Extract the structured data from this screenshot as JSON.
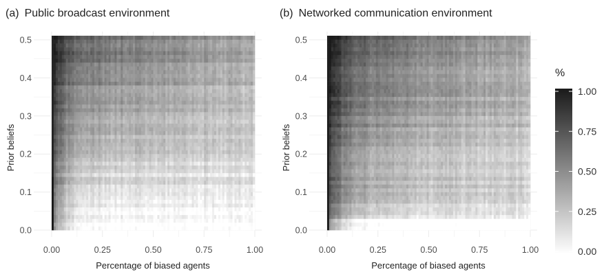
{
  "chart_data": [
    {
      "type": "heatmap",
      "panel_label": "(a)",
      "title": "Public broadcast environment",
      "xlabel": "Percentage of biased agents",
      "ylabel": "Prior beliefs",
      "xlim": [
        0,
        1
      ],
      "ylim": [
        0,
        0.5
      ],
      "x_ticks": [
        "0.00",
        "0.25",
        "0.50",
        "0.75",
        "1.00"
      ],
      "y_ticks": [
        "0.0",
        "0.1",
        "0.2",
        "0.3",
        "0.4",
        "0.5"
      ],
      "grid": true,
      "cell_grid": {
        "x_start": 0.0,
        "x_step": 0.01,
        "y_start": 0.0,
        "y_step": 0.01
      },
      "value_model": {
        "low_x_dark_column": {
          "x_max": 0.01,
          "value": 1.0
        },
        "description": "value rises with prior belief; near-black at very low bias share, lightest at low beliefs and high bias share"
      },
      "y_profile": [
        0.02,
        0.04,
        0.05,
        0.07,
        0.08,
        0.09,
        0.1,
        0.11,
        0.12,
        0.13,
        0.14,
        0.16,
        0.18,
        0.2,
        0.21,
        0.22,
        0.24,
        0.26,
        0.27,
        0.28,
        0.3,
        0.31,
        0.32,
        0.34,
        0.35,
        0.36,
        0.38,
        0.39,
        0.4,
        0.42,
        0.43,
        0.44,
        0.46,
        0.47,
        0.48,
        0.5,
        0.52,
        0.53,
        0.54,
        0.56,
        0.57,
        0.58,
        0.6,
        0.61,
        0.62,
        0.64,
        0.65,
        0.66,
        0.68,
        0.69,
        0.7
      ],
      "legend": {
        "title": "%",
        "ticks": [
          "0.00",
          "0.25",
          "0.50",
          "0.75",
          "1.00"
        ],
        "range": [
          0,
          1
        ],
        "position": "right",
        "low_color": "#ffffff",
        "high_color": "#1a1a1a"
      }
    },
    {
      "type": "heatmap",
      "panel_label": "(b)",
      "title": "Networked communication environment",
      "xlabel": "Percentage of biased agents",
      "ylabel": "Prior beliefs",
      "xlim": [
        0,
        1
      ],
      "ylim": [
        0,
        0.5
      ],
      "x_ticks": [
        "0.00",
        "0.25",
        "0.50",
        "0.75",
        "1.00"
      ],
      "y_ticks": [
        "0.0",
        "0.1",
        "0.2",
        "0.3",
        "0.4",
        "0.5"
      ],
      "grid": true,
      "cell_grid": {
        "x_start": 0.0,
        "x_step": 0.01,
        "y_start": 0.0,
        "y_step": 0.01
      },
      "value_model": {
        "low_x_dark_column": {
          "x_max": 0.01,
          "value": 1.0
        },
        "description": "value rises with prior belief; darker near low bias share, light band at lowest beliefs"
      },
      "y_profile": [
        0.03,
        0.06,
        0.1,
        0.14,
        0.17,
        0.2,
        0.22,
        0.24,
        0.26,
        0.28,
        0.3,
        0.31,
        0.32,
        0.33,
        0.34,
        0.35,
        0.36,
        0.37,
        0.38,
        0.39,
        0.4,
        0.41,
        0.42,
        0.43,
        0.44,
        0.45,
        0.46,
        0.47,
        0.48,
        0.49,
        0.5,
        0.51,
        0.52,
        0.53,
        0.54,
        0.55,
        0.56,
        0.57,
        0.58,
        0.59,
        0.6,
        0.61,
        0.62,
        0.63,
        0.64,
        0.65,
        0.66,
        0.67,
        0.68,
        0.69,
        0.7
      ],
      "legend": {
        "title": "%",
        "ticks": [
          "0.00",
          "0.25",
          "0.50",
          "0.75",
          "1.00"
        ],
        "range": [
          0,
          1
        ],
        "position": "right",
        "low_color": "#ffffff",
        "high_color": "#1a1a1a"
      }
    }
  ]
}
